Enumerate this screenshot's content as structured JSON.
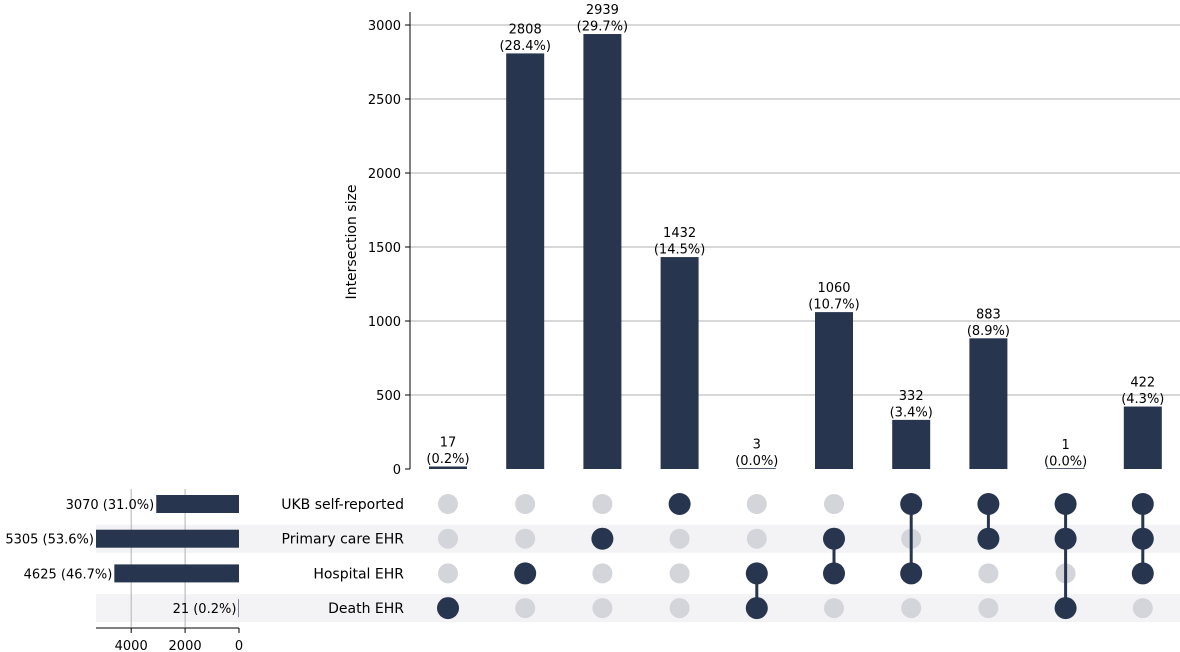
{
  "chart_data": {
    "type": "bar",
    "subtype": "upset",
    "ylabel": "Intersection size",
    "ylim": [
      0,
      3000
    ],
    "yticks": [
      0,
      500,
      1000,
      1500,
      2000,
      2500,
      3000
    ],
    "grid": true,
    "bar_color": "#27354f",
    "inactive_dot_color": "#d3d5da",
    "shade_color": "#f3f3f6",
    "sets": [
      {
        "name": "UKB self-reported",
        "size": 3070,
        "label": "3070 (31.0%)"
      },
      {
        "name": "Primary care EHR",
        "size": 5305,
        "label": "5305 (53.6%)"
      },
      {
        "name": "Hospital EHR",
        "size": 4625,
        "label": "4625 (46.7%)"
      },
      {
        "name": "Death EHR",
        "size": 21,
        "label": "21 (0.2%)"
      }
    ],
    "set_size_axis": {
      "ticks": [
        4000,
        2000,
        0
      ],
      "max": 5305
    },
    "intersections": [
      {
        "members": [
          3
        ],
        "value": 17,
        "count": "17",
        "pct": "(0.2%)"
      },
      {
        "members": [
          2
        ],
        "value": 2808,
        "count": "2808",
        "pct": "(28.4%)"
      },
      {
        "members": [
          1
        ],
        "value": 2939,
        "count": "2939",
        "pct": "(29.7%)"
      },
      {
        "members": [
          0
        ],
        "value": 1432,
        "count": "1432",
        "pct": "(14.5%)"
      },
      {
        "members": [
          2,
          3
        ],
        "value": 3,
        "count": "3",
        "pct": "(0.0%)"
      },
      {
        "members": [
          1,
          2
        ],
        "value": 1060,
        "count": "1060",
        "pct": "(10.7%)"
      },
      {
        "members": [
          0,
          2
        ],
        "value": 332,
        "count": "332",
        "pct": "(3.4%)"
      },
      {
        "members": [
          0,
          1
        ],
        "value": 883,
        "count": "883",
        "pct": "(8.9%)"
      },
      {
        "members": [
          0,
          1,
          3
        ],
        "value": 1,
        "count": "1",
        "pct": "(0.0%)"
      },
      {
        "members": [
          0,
          1,
          2
        ],
        "value": 422,
        "count": "422",
        "pct": "(4.3%)"
      }
    ]
  }
}
